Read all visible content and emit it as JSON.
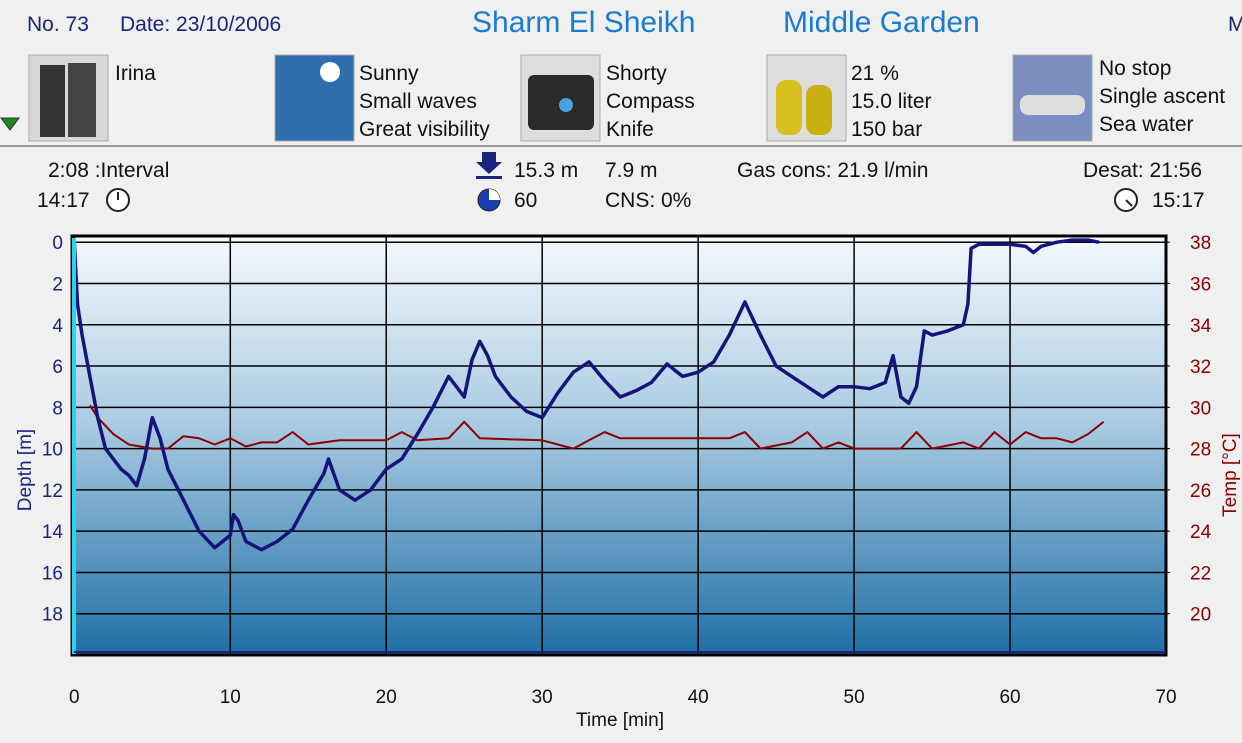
{
  "header": {
    "number": "No. 73",
    "date": "Date: 23/10/2006",
    "location": "Sharm El Sheikh",
    "site": "Middle Garden",
    "cut": "M"
  },
  "panels": [
    {
      "lines": [
        "Irina"
      ]
    },
    {
      "lines": [
        "Sunny",
        "Small waves",
        "Great visibility"
      ]
    },
    {
      "lines": [
        "Shorty",
        "Compass",
        "Knife"
      ]
    },
    {
      "lines": [
        "21 %",
        "15.0 liter",
        "150 bar"
      ]
    },
    {
      "lines": [
        "No stop",
        "Single ascent",
        "Sea water"
      ]
    }
  ],
  "stats": {
    "interval": "2:08 :Interval",
    "start": "14:17",
    "max_depth": "15.3 m",
    "avg_depth": "7.9 m",
    "gas": "Gas cons: 21.9 l/min",
    "desat": "Desat: 21:56",
    "duration": "60",
    "cns": "CNS:  0%",
    "end": "15:17"
  },
  "chart_data": {
    "type": "line",
    "xlabel": "Time [min]",
    "ylabel": "Depth [m]",
    "y2label": "Temp [°C]",
    "xlim": [
      -0.15,
      70
    ],
    "xticks": [
      0,
      10,
      20,
      30,
      40,
      50,
      60,
      70
    ],
    "ylim": [
      -0.3,
      20
    ],
    "y_inverted": true,
    "yticks": [
      0,
      2,
      4,
      6,
      8,
      10,
      12,
      14,
      16,
      18
    ],
    "y2lim": [
      18,
      38.3
    ],
    "y2ticks": [
      20,
      22,
      24,
      26,
      28,
      30,
      32,
      34,
      36,
      38
    ],
    "grid": true,
    "series": [
      {
        "color": "#14147a",
        "x": [
          0,
          0.2,
          0.5,
          1,
          1.5,
          2,
          2.5,
          3,
          3.5,
          4,
          4.5,
          5,
          5.5,
          6,
          7,
          8,
          9,
          10,
          10.2,
          10.5,
          11,
          12,
          13,
          14,
          15,
          16,
          16.3,
          17,
          18,
          19,
          20,
          21,
          22,
          23,
          24,
          24.5,
          25,
          25.5,
          26,
          26.5,
          27,
          28,
          29,
          30,
          31,
          32,
          33,
          34,
          35,
          36,
          37,
          38,
          39,
          40,
          41,
          42,
          43,
          44,
          45,
          46,
          47,
          48,
          49,
          50,
          51,
          52,
          52.5,
          53,
          53.5,
          54,
          54.5,
          55,
          56,
          57,
          57.3,
          57.5,
          58,
          60,
          61,
          61.5,
          62,
          63,
          64,
          65,
          65.7
        ],
        "values": [
          0,
          3,
          4.5,
          6.5,
          8.5,
          10,
          10.5,
          11,
          11.3,
          11.8,
          10.5,
          8.5,
          9.5,
          11,
          12.5,
          14,
          14.8,
          14.2,
          13.2,
          13.5,
          14.5,
          14.9,
          14.5,
          13.9,
          12.5,
          11.2,
          10.5,
          12,
          12.5,
          12,
          11,
          10.5,
          9.3,
          8,
          6.5,
          7,
          7.5,
          5.7,
          4.8,
          5.5,
          6.5,
          7.5,
          8.2,
          8.5,
          7.3,
          6.3,
          5.8,
          6.7,
          7.5,
          7.2,
          6.8,
          5.9,
          6.5,
          6.3,
          5.8,
          4.5,
          2.9,
          4.5,
          6,
          6.5,
          7,
          7.5,
          7,
          7,
          7.1,
          6.8,
          5.5,
          7.5,
          7.8,
          7,
          4.3,
          4.5,
          4.3,
          4,
          3,
          0.3,
          0.1,
          0.1,
          0.2,
          0.5,
          0.2,
          0,
          -0.1,
          -0.1,
          0
        ]
      },
      {
        "color": "#8b0000",
        "axis": "y2",
        "x": [
          1,
          1.5,
          2.5,
          3.5,
          5,
          6,
          7,
          8,
          9,
          10,
          11,
          12,
          13,
          14,
          15,
          16,
          17,
          20,
          21,
          22,
          24,
          25,
          26,
          30,
          32,
          33,
          34,
          35,
          42,
          43,
          44,
          46,
          47,
          48,
          49,
          50,
          53,
          54,
          55,
          57,
          58,
          59,
          60,
          61,
          62,
          63,
          64,
          65,
          66
        ],
        "values": [
          30.1,
          29.5,
          28.7,
          28.2,
          28,
          28,
          28.6,
          28.5,
          28.2,
          28.5,
          28.1,
          28.3,
          28.3,
          28.8,
          28.2,
          28.3,
          28.4,
          28.4,
          28.8,
          28.4,
          28.5,
          29.3,
          28.5,
          28.4,
          28,
          28.4,
          28.8,
          28.5,
          28.5,
          28.8,
          28,
          28.3,
          28.8,
          28,
          28.3,
          28,
          28,
          28.8,
          28,
          28.3,
          28,
          28.8,
          28.2,
          28.8,
          28.5,
          28.5,
          28.3,
          28.7,
          29.3
        ]
      }
    ]
  }
}
